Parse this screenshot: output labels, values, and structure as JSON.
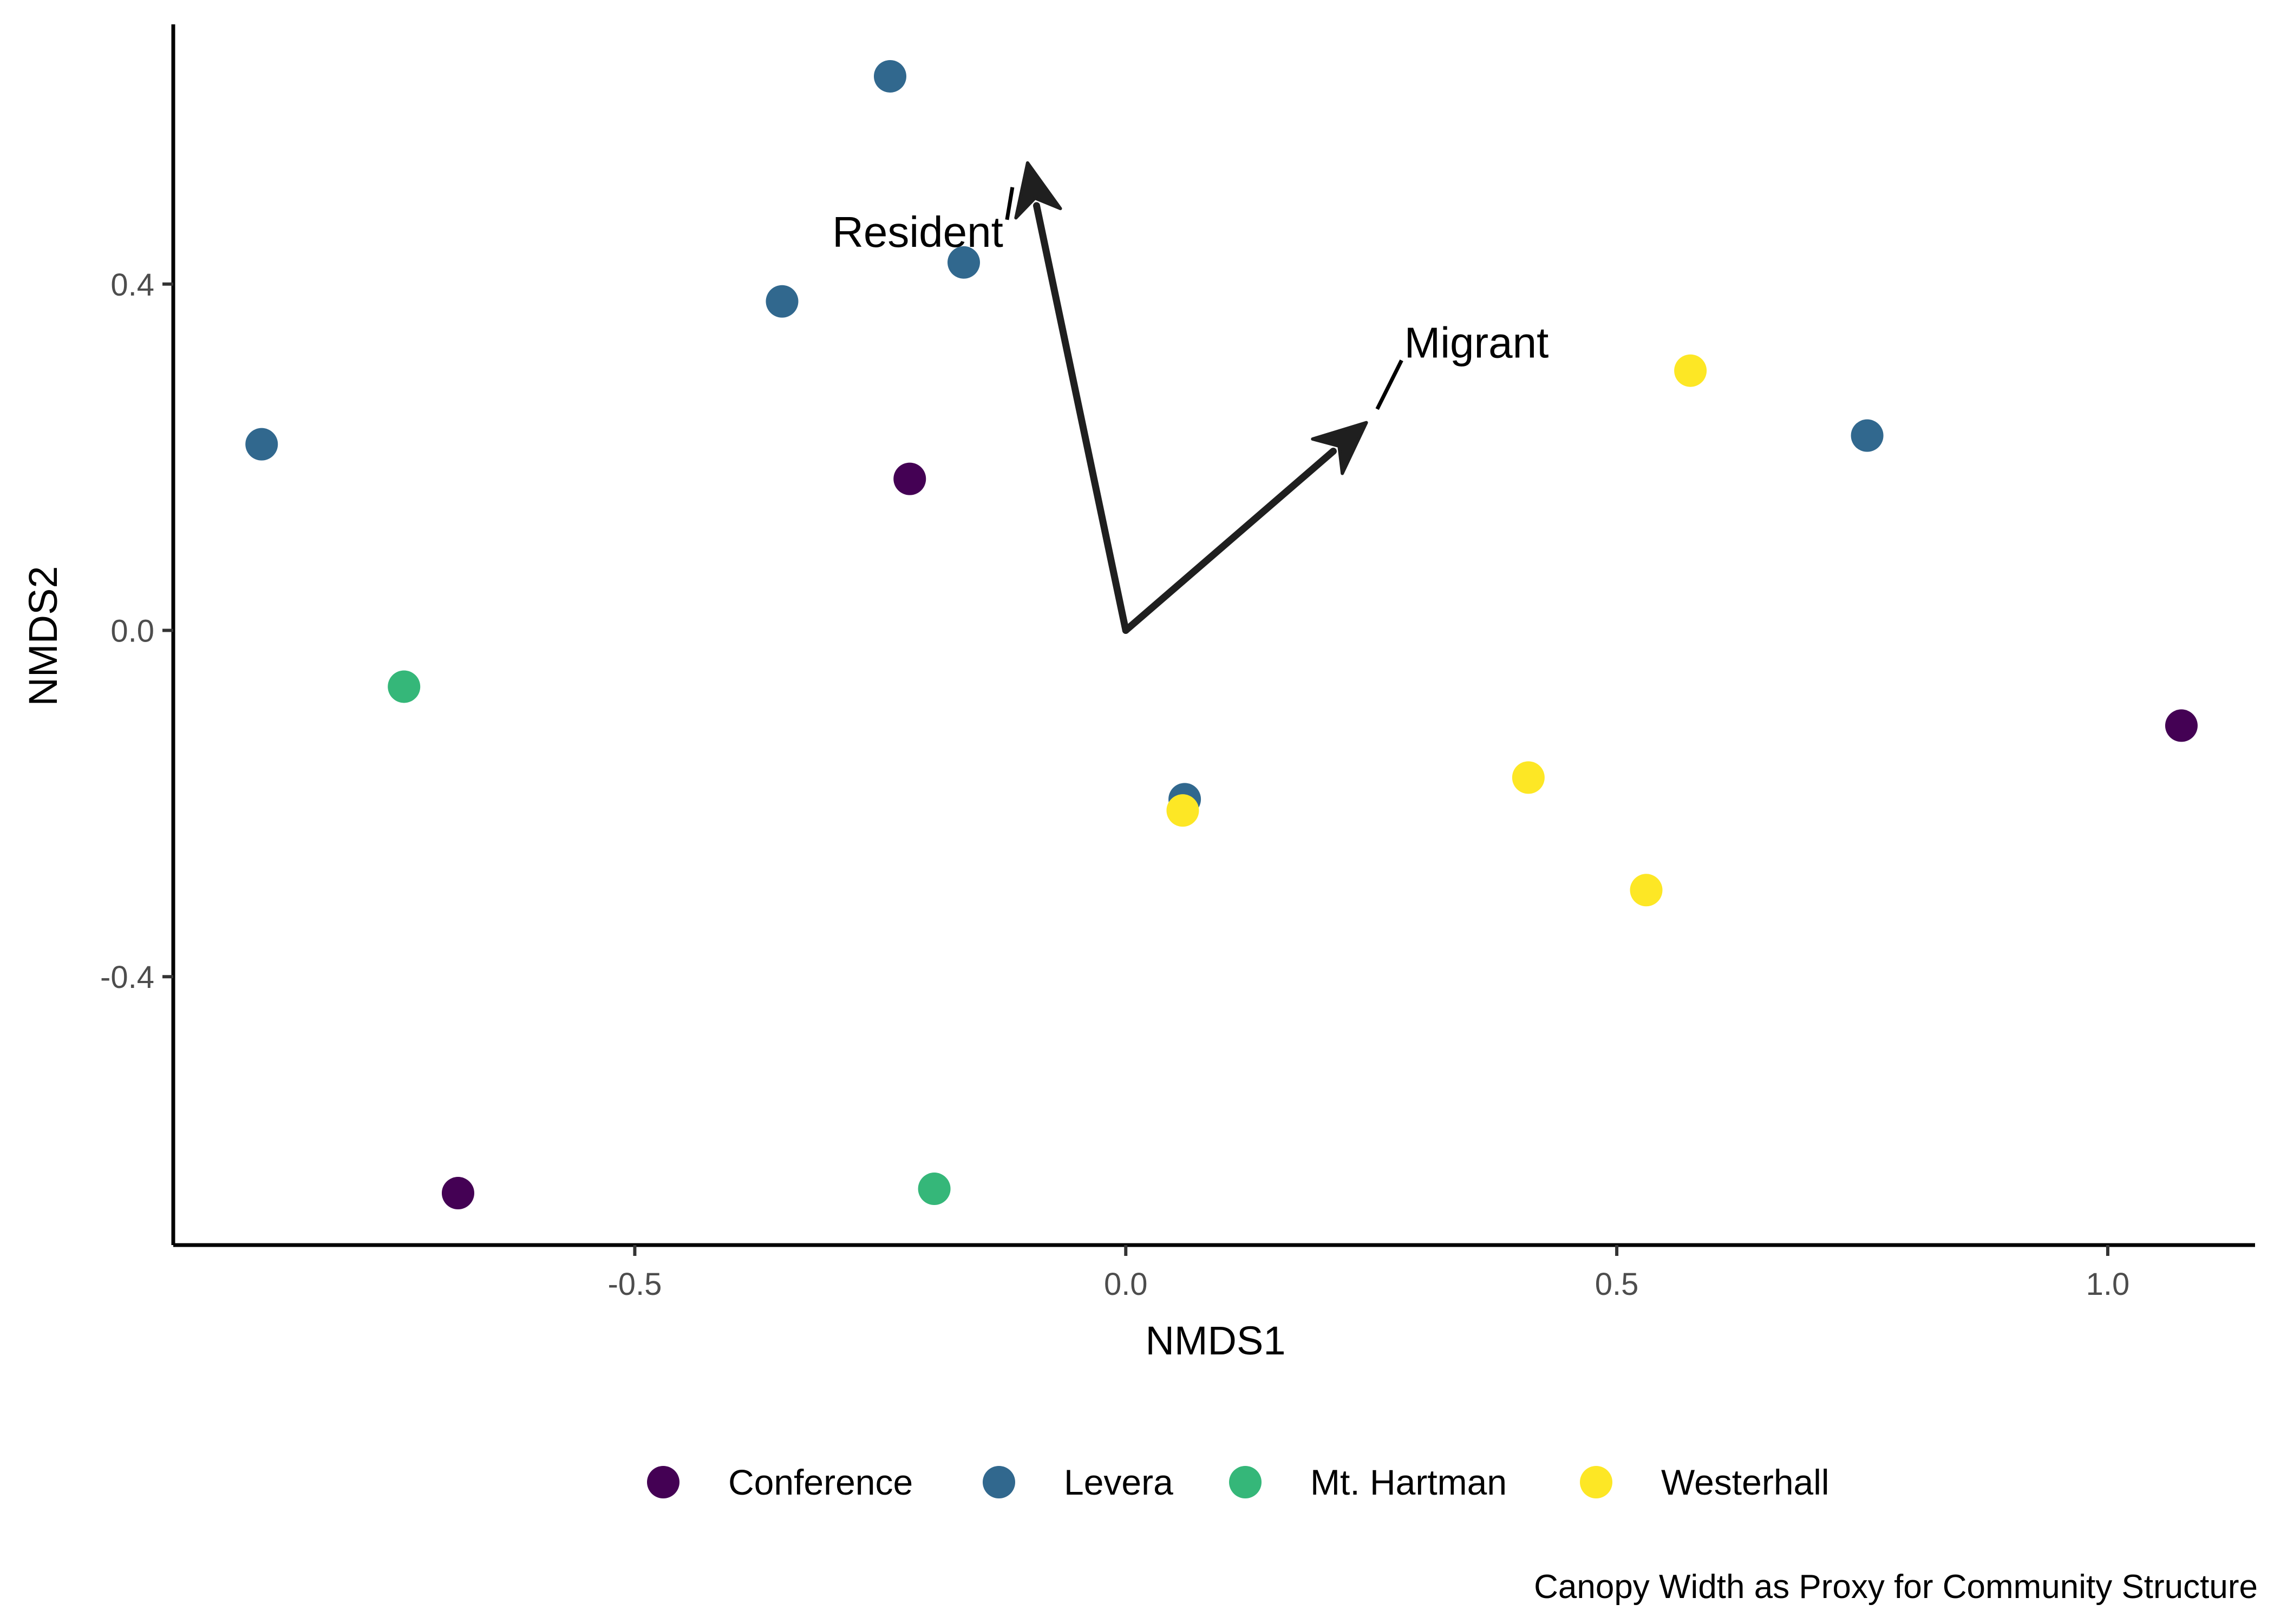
{
  "chart_data": {
    "type": "scatter",
    "title": "",
    "caption": "Canopy Width as Proxy for Community Structure",
    "xlabel": "NMDS1",
    "ylabel": "NMDS2",
    "xlim": [
      -0.97,
      1.15
    ],
    "ylim": [
      -0.71,
      0.7
    ],
    "xticks": [
      -0.5,
      0.0,
      0.5,
      1.0
    ],
    "xtick_labels": [
      "-0.5",
      "0.0",
      "0.5",
      "1.0"
    ],
    "yticks": [
      -0.4,
      0.0,
      0.4
    ],
    "ytick_labels": [
      "-0.4",
      "0.0",
      "0.4"
    ],
    "grid": false,
    "legend_position": "bottom",
    "series": [
      {
        "name": "Conference",
        "color": "#440154",
        "points": [
          {
            "x": -0.22,
            "y": 0.175
          },
          {
            "x": -0.68,
            "y": -0.65
          },
          {
            "x": 1.075,
            "y": -0.11
          }
        ]
      },
      {
        "name": "Levera",
        "color": "#31688E",
        "points": [
          {
            "x": -0.24,
            "y": 0.64
          },
          {
            "x": -0.165,
            "y": 0.425
          },
          {
            "x": -0.35,
            "y": 0.38
          },
          {
            "x": -0.88,
            "y": 0.215
          },
          {
            "x": 0.755,
            "y": 0.225
          },
          {
            "x": 0.06,
            "y": -0.195
          }
        ]
      },
      {
        "name": "Mt. Hartman",
        "color": "#35B779",
        "points": [
          {
            "x": -0.735,
            "y": -0.065
          },
          {
            "x": -0.195,
            "y": -0.645
          }
        ]
      },
      {
        "name": "Westerhall",
        "color": "#FDE725",
        "points": [
          {
            "x": 0.575,
            "y": 0.3
          },
          {
            "x": 0.41,
            "y": -0.17
          },
          {
            "x": 0.53,
            "y": -0.3
          },
          {
            "x": 0.058,
            "y": -0.208
          }
        ]
      }
    ],
    "vectors": [
      {
        "label": "Resident",
        "x": -0.1,
        "y": 0.54
      },
      {
        "label": "Migrant",
        "x": 0.245,
        "y": 0.24
      }
    ]
  }
}
